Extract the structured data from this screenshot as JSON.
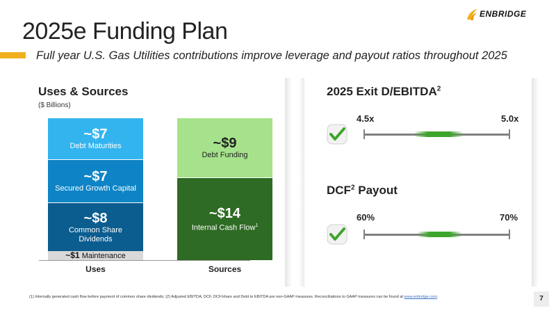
{
  "brand": {
    "logo_text": "ENBRIDGE",
    "accent_color": "#f2b01e"
  },
  "slide": {
    "title": "2025e Funding Plan",
    "subtitle": "Full year U.S. Gas Utilities contributions improve leverage and payout ratios throughout 2025",
    "page_number": "7"
  },
  "uses_sources": {
    "title": "Uses & Sources",
    "units": "($ Billions)",
    "uses_label": "Uses",
    "sources_label": "Sources",
    "uses": [
      {
        "value": "~$7",
        "label": "Debt Maturities",
        "color": "#33b4ef"
      },
      {
        "value": "~$7",
        "label": "Secured Growth Capital",
        "color": "#0e84c6"
      },
      {
        "value": "~$8",
        "label": "Common Share Dividends",
        "color": "#0b5c8f"
      }
    ],
    "maintenance": {
      "value": "~$1",
      "label": "Maintenance",
      "color": "#d9d9d9"
    },
    "sources": [
      {
        "value": "~$9",
        "label": "Debt Funding",
        "color": "#a6e28b"
      },
      {
        "value": "~$14",
        "label": "Internal Cash Flow",
        "footnote_ref": "1",
        "color": "#2e6b24"
      }
    ]
  },
  "metrics": {
    "ebitda": {
      "title": "2025 Exit D/EBITDA",
      "sup": "2",
      "low": "4.5x",
      "high": "5.0x",
      "check_icon": "checkmark-icon"
    },
    "payout": {
      "title_prefix": "DCF",
      "sup": "2",
      "title_suffix": " Payout",
      "low": "60%",
      "high": "70%",
      "check_icon": "checkmark-icon"
    }
  },
  "footnote": {
    "text": "(1) Internally generated cash flow before payment of common share dividends; (2) Adjusted EBITDA, DCF, DCF/share and Debt to EBITDA are non-GAAP measures. Reconciliations to GAAP measures can be found at ",
    "link": "www.enbridge.com",
    "end": "."
  }
}
